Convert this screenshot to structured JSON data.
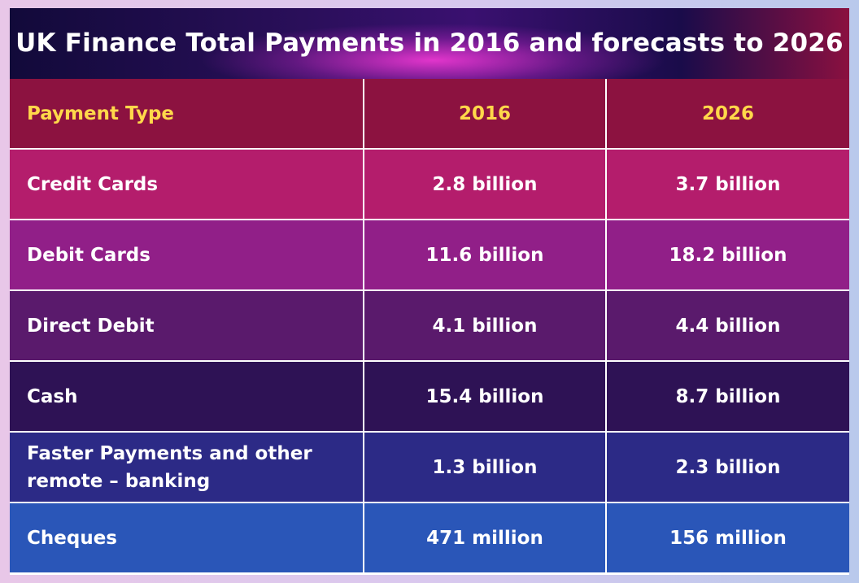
{
  "chart_data": {
    "type": "table",
    "title": "UK Finance Total Payments in 2016 and forecasts to 2026",
    "columns": [
      "Payment Type",
      "2016",
      "2026"
    ],
    "rows": [
      {
        "type": "Credit Cards",
        "y2016": "2.8 billion",
        "y2026": "3.7 billion"
      },
      {
        "type": "Debit Cards",
        "y2016": "11.6 billion",
        "y2026": "18.2 billion"
      },
      {
        "type": "Direct Debit",
        "y2016": "4.1 billion",
        "y2026": "4.4 billion"
      },
      {
        "type": "Cash",
        "y2016": "15.4 billion",
        "y2026": "8.7 billion"
      },
      {
        "type": "Faster Payments and other remote – banking",
        "y2016": "1.3 billion",
        "y2026": "2.3 billion"
      },
      {
        "type": "Cheques",
        "y2016": "471 million",
        "y2026": "156 million"
      }
    ]
  },
  "colors": {
    "header_text": "#ffd84a",
    "row_backgrounds": [
      "#8c1240",
      "#b41d6c",
      "#911f88",
      "#5a1a6c",
      "#2e1255",
      "#2c2a86",
      "#2a56b8"
    ]
  }
}
